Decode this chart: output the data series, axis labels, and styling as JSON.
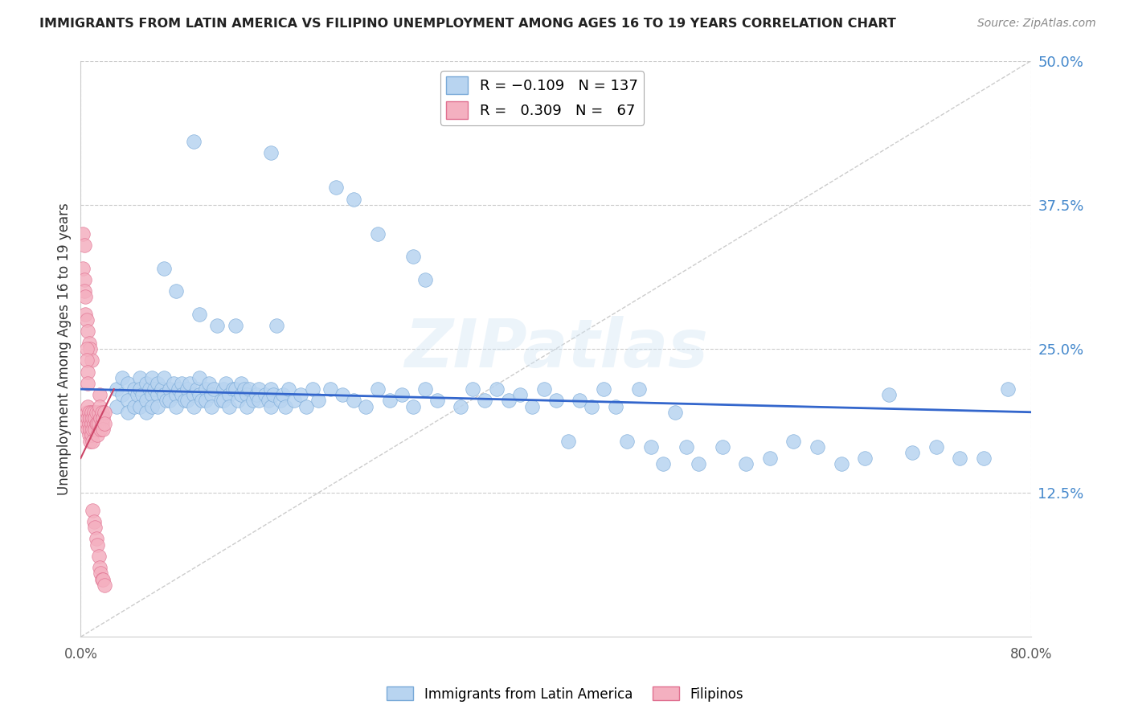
{
  "title": "IMMIGRANTS FROM LATIN AMERICA VS FILIPINO UNEMPLOYMENT AMONG AGES 16 TO 19 YEARS CORRELATION CHART",
  "source": "Source: ZipAtlas.com",
  "ylabel_label": "Unemployment Among Ages 16 to 19 years",
  "legend_series": [
    {
      "label": "Immigrants from Latin America",
      "color": "#b8d4f0",
      "edge": "#7aaad8",
      "R": -0.109,
      "N": 137
    },
    {
      "label": "Filipinos",
      "color": "#f4b0c0",
      "edge": "#e07090",
      "R": 0.309,
      "N": 67
    }
  ],
  "xlim": [
    0.0,
    0.8
  ],
  "ylim": [
    0.0,
    0.5
  ],
  "yticks": [
    0.125,
    0.25,
    0.375,
    0.5
  ],
  "xticks": [
    0.0,
    0.8
  ],
  "grid_color": "#cccccc",
  "background_color": "#ffffff",
  "blue_line": {
    "x0": 0.0,
    "y0": 0.215,
    "x1": 0.8,
    "y1": 0.195,
    "color": "#3366cc",
    "lw": 2.0
  },
  "pink_line": {
    "x0": 0.0,
    "y0": 0.155,
    "x1": 0.028,
    "y1": 0.215,
    "color": "#cc4466",
    "lw": 1.5
  },
  "diag_line": {
    "color": "#cccccc",
    "lw": 1.0,
    "style": "--"
  },
  "latin_scatter": [
    [
      0.03,
      0.215
    ],
    [
      0.03,
      0.2
    ],
    [
      0.035,
      0.225
    ],
    [
      0.035,
      0.21
    ],
    [
      0.04,
      0.22
    ],
    [
      0.04,
      0.205
    ],
    [
      0.04,
      0.195
    ],
    [
      0.045,
      0.215
    ],
    [
      0.045,
      0.2
    ],
    [
      0.048,
      0.21
    ],
    [
      0.05,
      0.225
    ],
    [
      0.05,
      0.215
    ],
    [
      0.05,
      0.2
    ],
    [
      0.052,
      0.21
    ],
    [
      0.055,
      0.22
    ],
    [
      0.055,
      0.205
    ],
    [
      0.055,
      0.195
    ],
    [
      0.058,
      0.215
    ],
    [
      0.06,
      0.225
    ],
    [
      0.06,
      0.21
    ],
    [
      0.06,
      0.2
    ],
    [
      0.062,
      0.215
    ],
    [
      0.065,
      0.22
    ],
    [
      0.065,
      0.21
    ],
    [
      0.065,
      0.2
    ],
    [
      0.068,
      0.215
    ],
    [
      0.07,
      0.225
    ],
    [
      0.07,
      0.21
    ],
    [
      0.072,
      0.205
    ],
    [
      0.075,
      0.215
    ],
    [
      0.075,
      0.205
    ],
    [
      0.078,
      0.22
    ],
    [
      0.08,
      0.21
    ],
    [
      0.08,
      0.2
    ],
    [
      0.082,
      0.215
    ],
    [
      0.085,
      0.22
    ],
    [
      0.085,
      0.21
    ],
    [
      0.088,
      0.205
    ],
    [
      0.09,
      0.215
    ],
    [
      0.09,
      0.205
    ],
    [
      0.092,
      0.22
    ],
    [
      0.095,
      0.21
    ],
    [
      0.095,
      0.2
    ],
    [
      0.098,
      0.215
    ],
    [
      0.1,
      0.225
    ],
    [
      0.1,
      0.21
    ],
    [
      0.102,
      0.205
    ],
    [
      0.105,
      0.215
    ],
    [
      0.105,
      0.205
    ],
    [
      0.108,
      0.22
    ],
    [
      0.11,
      0.21
    ],
    [
      0.11,
      0.2
    ],
    [
      0.112,
      0.215
    ],
    [
      0.115,
      0.27
    ],
    [
      0.118,
      0.205
    ],
    [
      0.12,
      0.215
    ],
    [
      0.12,
      0.205
    ],
    [
      0.122,
      0.22
    ],
    [
      0.125,
      0.21
    ],
    [
      0.125,
      0.2
    ],
    [
      0.128,
      0.215
    ],
    [
      0.13,
      0.27
    ],
    [
      0.13,
      0.215
    ],
    [
      0.132,
      0.205
    ],
    [
      0.135,
      0.22
    ],
    [
      0.135,
      0.21
    ],
    [
      0.138,
      0.215
    ],
    [
      0.14,
      0.21
    ],
    [
      0.14,
      0.2
    ],
    [
      0.142,
      0.215
    ],
    [
      0.145,
      0.205
    ],
    [
      0.148,
      0.21
    ],
    [
      0.15,
      0.215
    ],
    [
      0.15,
      0.205
    ],
    [
      0.155,
      0.21
    ],
    [
      0.158,
      0.205
    ],
    [
      0.16,
      0.215
    ],
    [
      0.16,
      0.2
    ],
    [
      0.162,
      0.21
    ],
    [
      0.165,
      0.27
    ],
    [
      0.168,
      0.205
    ],
    [
      0.17,
      0.21
    ],
    [
      0.172,
      0.2
    ],
    [
      0.175,
      0.215
    ],
    [
      0.18,
      0.205
    ],
    [
      0.185,
      0.21
    ],
    [
      0.19,
      0.2
    ],
    [
      0.195,
      0.215
    ],
    [
      0.2,
      0.205
    ],
    [
      0.21,
      0.215
    ],
    [
      0.22,
      0.21
    ],
    [
      0.23,
      0.205
    ],
    [
      0.24,
      0.2
    ],
    [
      0.25,
      0.215
    ],
    [
      0.26,
      0.205
    ],
    [
      0.27,
      0.21
    ],
    [
      0.28,
      0.2
    ],
    [
      0.29,
      0.215
    ],
    [
      0.3,
      0.205
    ],
    [
      0.32,
      0.2
    ],
    [
      0.33,
      0.215
    ],
    [
      0.34,
      0.205
    ],
    [
      0.35,
      0.215
    ],
    [
      0.36,
      0.205
    ],
    [
      0.37,
      0.21
    ],
    [
      0.38,
      0.2
    ],
    [
      0.39,
      0.215
    ],
    [
      0.4,
      0.205
    ],
    [
      0.41,
      0.17
    ],
    [
      0.42,
      0.205
    ],
    [
      0.43,
      0.2
    ],
    [
      0.44,
      0.215
    ],
    [
      0.45,
      0.2
    ],
    [
      0.46,
      0.17
    ],
    [
      0.47,
      0.215
    ],
    [
      0.48,
      0.165
    ],
    [
      0.49,
      0.15
    ],
    [
      0.5,
      0.195
    ],
    [
      0.51,
      0.165
    ],
    [
      0.52,
      0.15
    ],
    [
      0.54,
      0.165
    ],
    [
      0.56,
      0.15
    ],
    [
      0.58,
      0.155
    ],
    [
      0.6,
      0.17
    ],
    [
      0.62,
      0.165
    ],
    [
      0.64,
      0.15
    ],
    [
      0.66,
      0.155
    ],
    [
      0.68,
      0.21
    ],
    [
      0.7,
      0.16
    ],
    [
      0.72,
      0.165
    ],
    [
      0.74,
      0.155
    ],
    [
      0.76,
      0.155
    ],
    [
      0.78,
      0.215
    ],
    [
      0.095,
      0.43
    ],
    [
      0.16,
      0.42
    ],
    [
      0.215,
      0.39
    ],
    [
      0.23,
      0.38
    ],
    [
      0.25,
      0.35
    ],
    [
      0.28,
      0.33
    ],
    [
      0.29,
      0.31
    ],
    [
      0.07,
      0.32
    ],
    [
      0.08,
      0.3
    ],
    [
      0.1,
      0.28
    ]
  ],
  "filipino_scatter": [
    [
      0.005,
      0.195
    ],
    [
      0.005,
      0.185
    ],
    [
      0.006,
      0.2
    ],
    [
      0.006,
      0.19
    ],
    [
      0.006,
      0.18
    ],
    [
      0.007,
      0.195
    ],
    [
      0.007,
      0.185
    ],
    [
      0.007,
      0.175
    ],
    [
      0.008,
      0.19
    ],
    [
      0.008,
      0.18
    ],
    [
      0.008,
      0.17
    ],
    [
      0.009,
      0.195
    ],
    [
      0.009,
      0.185
    ],
    [
      0.009,
      0.175
    ],
    [
      0.01,
      0.19
    ],
    [
      0.01,
      0.18
    ],
    [
      0.01,
      0.17
    ],
    [
      0.011,
      0.195
    ],
    [
      0.011,
      0.185
    ],
    [
      0.012,
      0.19
    ],
    [
      0.012,
      0.18
    ],
    [
      0.013,
      0.195
    ],
    [
      0.013,
      0.185
    ],
    [
      0.014,
      0.185
    ],
    [
      0.014,
      0.175
    ],
    [
      0.015,
      0.195
    ],
    [
      0.015,
      0.185
    ],
    [
      0.016,
      0.21
    ],
    [
      0.016,
      0.2
    ],
    [
      0.017,
      0.19
    ],
    [
      0.017,
      0.18
    ],
    [
      0.018,
      0.195
    ],
    [
      0.018,
      0.185
    ],
    [
      0.019,
      0.19
    ],
    [
      0.019,
      0.18
    ],
    [
      0.02,
      0.195
    ],
    [
      0.02,
      0.185
    ],
    [
      0.002,
      0.32
    ],
    [
      0.003,
      0.31
    ],
    [
      0.003,
      0.3
    ],
    [
      0.004,
      0.295
    ],
    [
      0.004,
      0.28
    ],
    [
      0.005,
      0.275
    ],
    [
      0.006,
      0.265
    ],
    [
      0.007,
      0.255
    ],
    [
      0.008,
      0.25
    ],
    [
      0.009,
      0.24
    ],
    [
      0.002,
      0.35
    ],
    [
      0.003,
      0.34
    ],
    [
      0.005,
      0.25
    ],
    [
      0.005,
      0.24
    ],
    [
      0.006,
      0.23
    ],
    [
      0.006,
      0.22
    ],
    [
      0.01,
      0.11
    ],
    [
      0.011,
      0.1
    ],
    [
      0.012,
      0.095
    ],
    [
      0.013,
      0.085
    ],
    [
      0.014,
      0.08
    ],
    [
      0.015,
      0.07
    ],
    [
      0.016,
      0.06
    ],
    [
      0.017,
      0.055
    ],
    [
      0.018,
      0.05
    ],
    [
      0.019,
      0.05
    ],
    [
      0.02,
      0.045
    ]
  ]
}
